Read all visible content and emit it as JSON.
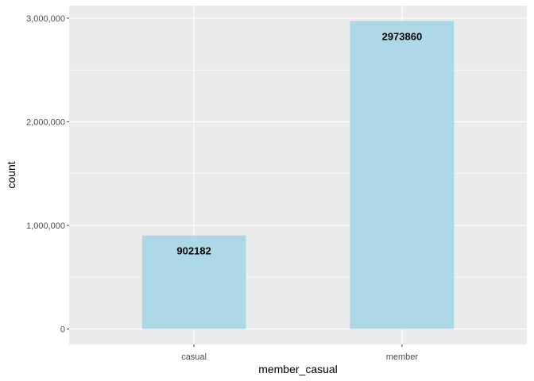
{
  "chart_data": {
    "type": "bar",
    "categories": [
      "casual",
      "member"
    ],
    "values": [
      902182,
      2973860
    ],
    "data_labels": [
      "902182",
      "2973860"
    ],
    "xlabel": "member_casual",
    "ylabel": "count",
    "ylim": [
      -150000,
      3122000
    ],
    "yticks": [
      0,
      1000000,
      2000000,
      3000000
    ],
    "ytick_labels": [
      "0",
      "1,000,000",
      "2,000,000",
      "3,000,000"
    ],
    "grid": true,
    "legend": "none",
    "colors": {
      "bar": "#add8e6",
      "panel": "#ebebeb",
      "grid": "#ffffff",
      "text": "#4d4d4d",
      "tick": "#333333",
      "label": "#000000"
    }
  }
}
